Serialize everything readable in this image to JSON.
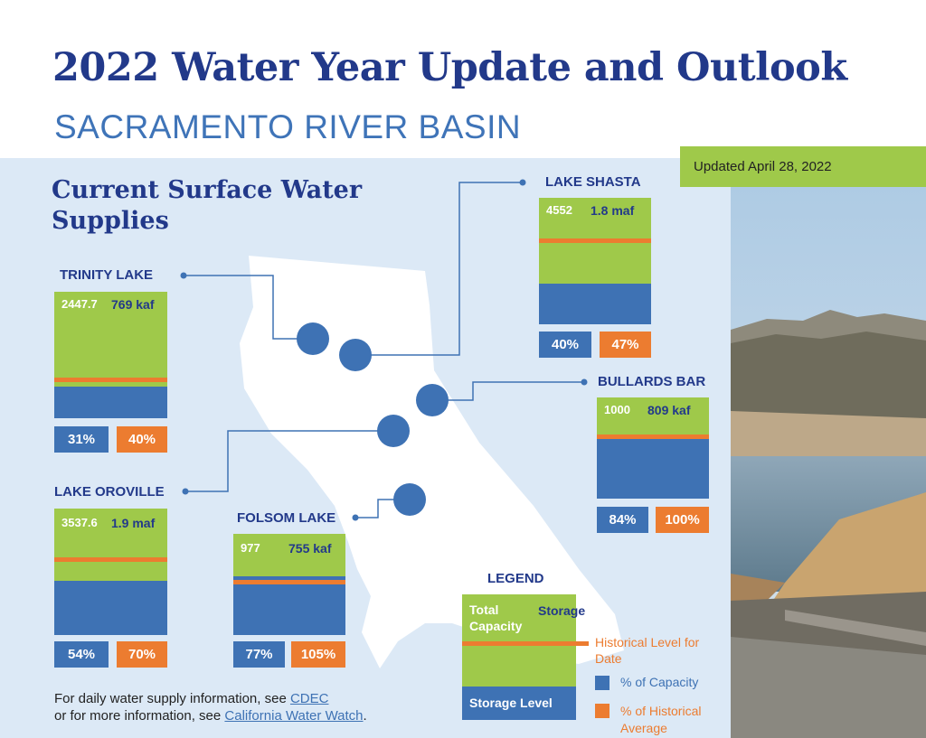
{
  "header": {
    "title": "2022 Water Year Update and Outlook",
    "subtitle": "SACRAMENTO RIVER BASIN",
    "updated": "Updated April 28, 2022"
  },
  "section_title_line1": "Current Surface Water",
  "section_title_line2": "Supplies",
  "reservoirs": {
    "trinity": {
      "name": "TRINITY LAKE",
      "total_capacity": "2447.7",
      "storage": "769 kaf",
      "pct_capacity": "31%",
      "pct_historical": "40%",
      "capacity_fraction": 0.31,
      "historical_fraction": 0.4
    },
    "shasta": {
      "name": "LAKE SHASTA",
      "total_capacity": "4552",
      "storage": "1.8 maf",
      "pct_capacity": "40%",
      "pct_historical": "47%",
      "capacity_fraction": 0.4,
      "historical_fraction": 0.85
    },
    "bullards": {
      "name": "BULLARDS BAR",
      "total_capacity": "1000",
      "storage": "809 kaf",
      "pct_capacity": "84%",
      "pct_historical": "100%",
      "capacity_fraction": 0.84,
      "historical_fraction": 0.84
    },
    "oroville": {
      "name": "LAKE OROVILLE",
      "total_capacity": "3537.6",
      "storage": "1.9 maf",
      "pct_capacity": "54%",
      "pct_historical": "70%",
      "capacity_fraction": 0.54,
      "historical_fraction": 0.77
    },
    "folsom": {
      "name": "FOLSOM LAKE",
      "total_capacity": "977",
      "storage": "755 kaf",
      "pct_capacity": "77%",
      "pct_historical": "105%",
      "capacity_fraction": 0.77,
      "historical_fraction": 0.73
    }
  },
  "legend": {
    "title": "LEGEND",
    "total_capacity": "Total Capacity",
    "storage": "Storage",
    "historical_level": "Historical Level for Date",
    "storage_level": "Storage Level",
    "pct_capacity": "% of Capacity",
    "pct_historical": "% of Historical Average"
  },
  "footer": {
    "line1_prefix": "For daily water supply information, see ",
    "line1_link": "CDEC",
    "line2_prefix": "or for more information, see ",
    "line2_link": "California Water Watch",
    "line2_suffix": "."
  },
  "colors": {
    "navy": "#22398a",
    "blue": "#3e72b4",
    "green": "#9fc94a",
    "orange": "#ec7c30",
    "panel": "#dce9f6"
  }
}
